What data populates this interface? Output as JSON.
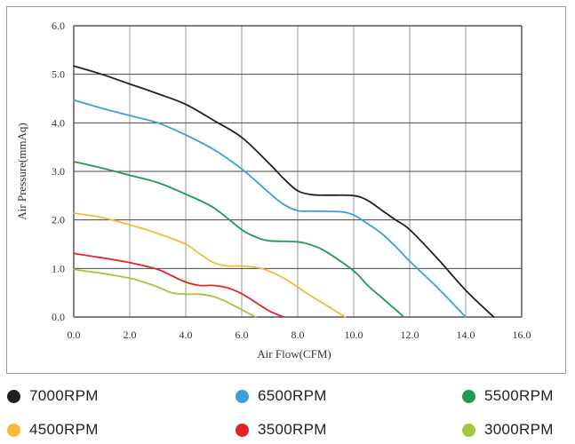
{
  "chart_data": {
    "type": "line",
    "title": "",
    "xlabel": "Air Flow(CFM)",
    "ylabel": "Air Pressure(mmAq)",
    "xlim": [
      0,
      16
    ],
    "ylim": [
      0,
      6
    ],
    "xticks": [
      "0.0",
      "2.0",
      "4.0",
      "6.0",
      "8.0",
      "10.0",
      "12.0",
      "14.0",
      "16.0"
    ],
    "yticks": [
      "0.0",
      "1.0",
      "2.0",
      "3.0",
      "4.0",
      "5.0",
      "6.0"
    ],
    "grid": true,
    "series": [
      {
        "name": "7000RPM",
        "color": "#231f20",
        "x": [
          0,
          1,
          2,
          3,
          4,
          5,
          6,
          7,
          7.5,
          8,
          8.5,
          9,
          10,
          10.5,
          11,
          11.5,
          12,
          13,
          14,
          15
        ],
        "y": [
          5.17,
          5.0,
          4.8,
          4.6,
          4.38,
          4.05,
          3.7,
          3.15,
          2.85,
          2.6,
          2.52,
          2.51,
          2.5,
          2.4,
          2.2,
          2.0,
          1.8,
          1.2,
          0.55,
          0.0
        ]
      },
      {
        "name": "6500RPM",
        "color": "#3aa0d8",
        "x": [
          0,
          1,
          2,
          3,
          4,
          5,
          6,
          7,
          7.5,
          8,
          8.5,
          9.5,
          10,
          10.5,
          11,
          11.5,
          12,
          13,
          14
        ],
        "y": [
          4.47,
          4.3,
          4.15,
          4.0,
          3.75,
          3.45,
          3.05,
          2.55,
          2.32,
          2.19,
          2.18,
          2.17,
          2.1,
          1.92,
          1.72,
          1.45,
          1.15,
          0.6,
          0.0
        ]
      },
      {
        "name": "5500RPM",
        "color": "#1f9a54",
        "x": [
          0,
          1,
          2,
          3,
          4,
          5,
          6,
          6.5,
          7,
          8,
          8.5,
          9,
          10,
          10.5,
          11,
          11.8
        ],
        "y": [
          3.2,
          3.07,
          2.92,
          2.77,
          2.53,
          2.25,
          1.8,
          1.65,
          1.57,
          1.55,
          1.48,
          1.35,
          0.95,
          0.65,
          0.4,
          0.0
        ]
      },
      {
        "name": "4500RPM",
        "color": "#f3bb3a",
        "x": [
          0,
          1,
          2,
          3,
          4,
          4.5,
          5,
          5.5,
          6,
          6.7,
          7.5,
          8.3,
          9,
          9.7
        ],
        "y": [
          2.14,
          2.05,
          1.9,
          1.72,
          1.5,
          1.3,
          1.12,
          1.05,
          1.05,
          1.0,
          0.8,
          0.5,
          0.25,
          0.0
        ]
      },
      {
        "name": "3500RPM",
        "color": "#e2232a",
        "x": [
          0,
          1,
          2,
          3,
          3.5,
          4,
          4.5,
          5,
          5.5,
          6,
          6.5,
          7,
          7.5
        ],
        "y": [
          1.31,
          1.22,
          1.12,
          0.98,
          0.85,
          0.72,
          0.65,
          0.65,
          0.6,
          0.48,
          0.3,
          0.12,
          0.0
        ]
      },
      {
        "name": "3000RPM",
        "color": "#a4c53c",
        "x": [
          0,
          1,
          2,
          2.5,
          3,
          3.5,
          4,
          4.5,
          5,
          5.5,
          6,
          6.5
        ],
        "y": [
          0.98,
          0.9,
          0.8,
          0.72,
          0.62,
          0.5,
          0.47,
          0.47,
          0.42,
          0.3,
          0.15,
          0.0
        ]
      }
    ]
  },
  "legend": [
    {
      "label": "7000RPM",
      "color": "#231f20"
    },
    {
      "label": "6500RPM",
      "color": "#3aa0d8"
    },
    {
      "label": "5500RPM",
      "color": "#1f9a54"
    },
    {
      "label": "4500RPM",
      "color": "#f3bb3a"
    },
    {
      "label": "3500RPM",
      "color": "#e2232a"
    },
    {
      "label": "3000RPM",
      "color": "#a4c53c"
    }
  ]
}
